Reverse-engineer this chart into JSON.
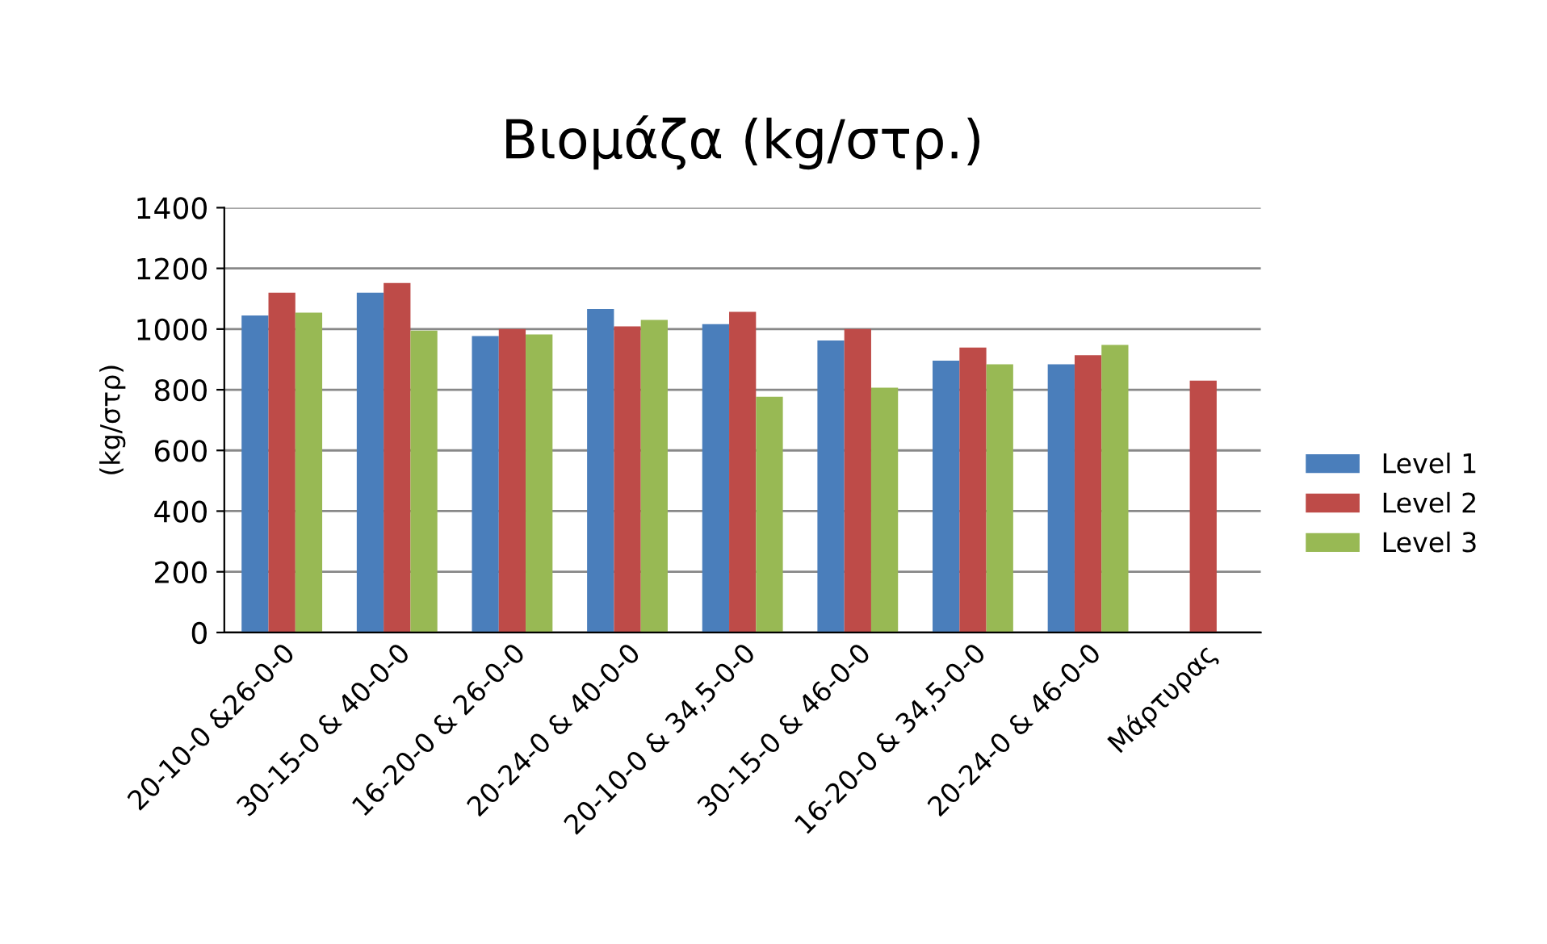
{
  "chart_data": {
    "type": "bar",
    "title": "Βιομάζα (kg/στρ.)",
    "ylabel": "(kg/στρ)",
    "categories": [
      "20-10-0 &26-0-0",
      "30-15-0 & 40-0-0",
      "16-20-0 & 26-0-0",
      "20-24-0 & 40-0-0",
      "20-10-0 & 34,5-0-0",
      "30-15-0 & 46-0-0",
      "16-20-0 & 34,5-0-0",
      "20-24-0 & 46-0-0",
      "Μάρτυρας"
    ],
    "series": [
      {
        "name": "Level 1",
        "color": "#4a7ebb",
        "values": [
          1045,
          1120,
          977,
          1066,
          1016,
          962,
          896,
          884,
          null
        ]
      },
      {
        "name": "Level 2",
        "color": "#be4b48",
        "values": [
          1120,
          1152,
          1000,
          1009,
          1057,
          1000,
          939,
          914,
          830
        ]
      },
      {
        "name": "Level 3",
        "color": "#98b954",
        "values": [
          1054,
          995,
          982,
          1030,
          777,
          807,
          884,
          948,
          null
        ]
      }
    ],
    "ylim": [
      0,
      1400
    ],
    "yticks": [
      0,
      200,
      400,
      600,
      800,
      1000,
      1200,
      1400
    ],
    "grid": "y",
    "legend": "right"
  }
}
